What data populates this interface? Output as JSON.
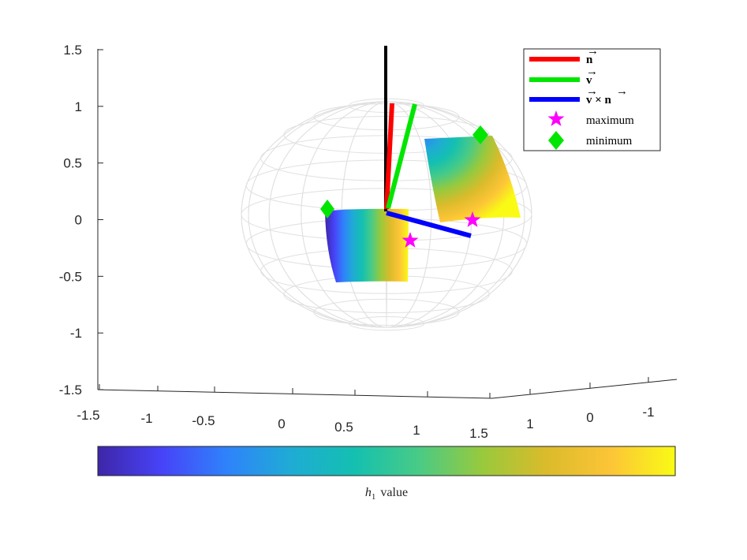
{
  "chart_data": {
    "type": "scatter",
    "title": "",
    "axes": {
      "z_ticks": [
        "1.5",
        "1",
        "0.5",
        "0",
        "-0.5",
        "-1",
        "-1.5"
      ],
      "x_ticks": [
        "-1.5",
        "-1",
        "-0.5",
        "0",
        "0.5",
        "1",
        "1.5"
      ],
      "y_ticks": [
        "1",
        "0",
        "-1"
      ],
      "zlim": [
        -1.5,
        1.5
      ],
      "xlim": [
        -1.5,
        1.5
      ],
      "ylim": [
        -1.5,
        1.5
      ],
      "grid": false
    },
    "sphere": {
      "radius": 1,
      "wireframe_color": "#e0e0e0"
    },
    "vectors": [
      {
        "name": "n",
        "color": "#ff0000"
      },
      {
        "name": "v",
        "color": "#00e600"
      },
      {
        "name": "v × n",
        "color": "#0000ff"
      }
    ],
    "vertical_axis_line": {
      "color": "#000000"
    },
    "markers": {
      "maximum": {
        "color": "#ff00ff",
        "symbol": "star"
      },
      "minimum": {
        "color": "#00e600",
        "symbol": "diamond"
      }
    },
    "legend": {
      "position": "top-right",
      "entries": [
        {
          "label": "n",
          "kind": "line",
          "color": "#ff0000",
          "math": true
        },
        {
          "label": "v",
          "kind": "line",
          "color": "#00e600",
          "math": true
        },
        {
          "label": "v × n",
          "kind": "line",
          "color": "#0000ff",
          "math": true
        },
        {
          "label": "maximum",
          "kind": "star",
          "color": "#ff00ff"
        },
        {
          "label": "minimum",
          "kind": "diamond",
          "color": "#00e600"
        }
      ]
    },
    "colorbar": {
      "label_var": "h",
      "label_sub": "1",
      "label_text": "value",
      "colormap": [
        "#3e26a8",
        "#4743f8",
        "#2f82fb",
        "#1fabd5",
        "#14c0b0",
        "#48cb86",
        "#99c93c",
        "#dbbb2b",
        "#fcc537",
        "#f9fb15"
      ]
    }
  }
}
